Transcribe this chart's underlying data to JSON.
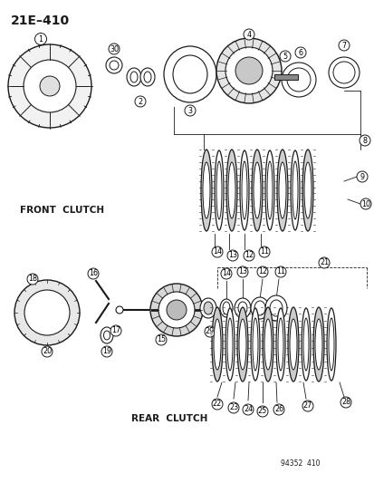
{
  "title": "21E–410",
  "catalog_number": "94352  410",
  "front_clutch_label": "FRONT  CLUTCH",
  "rear_clutch_label": "REAR  CLUTCH",
  "bg_color": "#ffffff",
  "line_color": "#1a1a1a",
  "figsize": [
    4.14,
    5.33
  ],
  "dpi": 100
}
